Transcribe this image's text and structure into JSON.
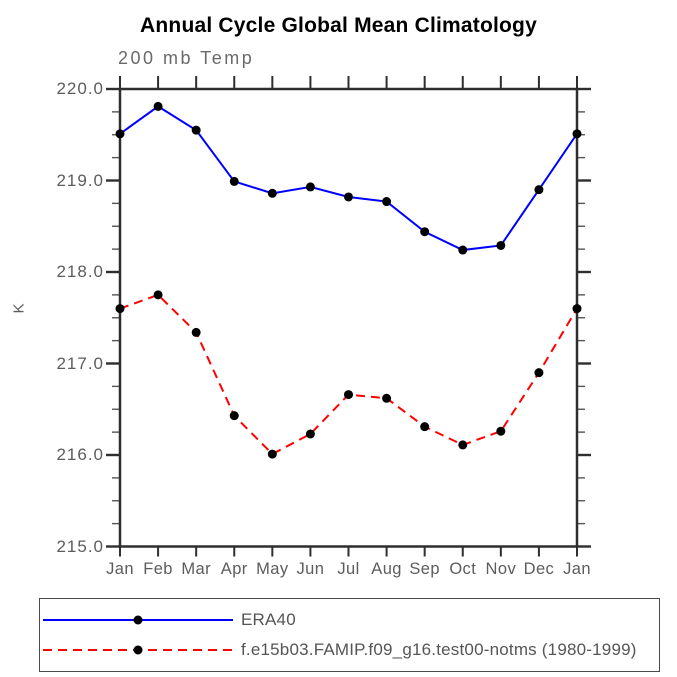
{
  "title": "Annual Cycle Global Mean Climatology",
  "subtitle": "200 mb Temp",
  "y_axis_unit": "K",
  "colors": {
    "era40_line": "#0000ff",
    "model_line": "#ff0000",
    "marker": "#000000",
    "axis": "#2e2e2e",
    "minor_tick": "#555555",
    "text_gray": "#5c5c5c",
    "title_text": "#000000"
  },
  "chart_data": {
    "type": "line",
    "title": "Annual Cycle Global Mean Climatology",
    "subtitle": "200 mb Temp",
    "xlabel": "",
    "ylabel": "K",
    "categories": [
      "Jan",
      "Feb",
      "Mar",
      "Apr",
      "May",
      "Jun",
      "Jul",
      "Aug",
      "Sep",
      "Oct",
      "Nov",
      "Dec",
      "Jan"
    ],
    "series": [
      {
        "name": "ERA40",
        "color": "#0000ff",
        "line_style": "solid",
        "marker": "filled-circle",
        "marker_color": "#000000",
        "values": [
          219.51,
          219.81,
          219.55,
          218.99,
          218.86,
          218.93,
          218.82,
          218.77,
          218.44,
          218.24,
          218.29,
          218.9,
          219.51
        ]
      },
      {
        "name": "f.e15b03.FAMIP.f09_g16.test00-notms (1980-1999)",
        "color": "#ff0000",
        "line_style": "dashed",
        "marker": "filled-circle",
        "marker_color": "#000000",
        "values": [
          217.6,
          217.75,
          217.34,
          216.43,
          216.01,
          216.23,
          216.66,
          216.62,
          216.31,
          216.11,
          216.26,
          216.9,
          217.6
        ]
      }
    ],
    "ylim": [
      215.0,
      220.0
    ],
    "y_major_ticks": [
      215.0,
      216.0,
      217.0,
      218.0,
      219.0,
      220.0
    ],
    "y_tick_labels": [
      "215.0",
      "216.0",
      "217.0",
      "218.0",
      "219.0",
      "220.0"
    ],
    "y_minor_interval": 0.25,
    "grid": false,
    "tick_direction": "out",
    "legend_position": "below"
  }
}
